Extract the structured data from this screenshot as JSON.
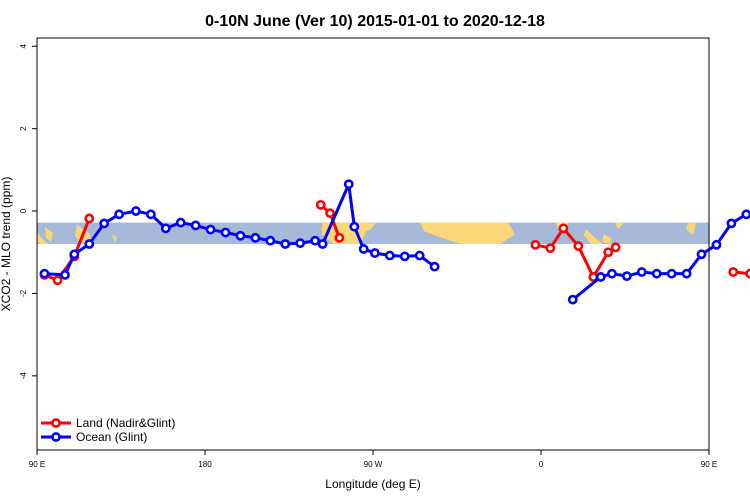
{
  "chart_data": {
    "type": "line",
    "title": "0-10N June (Ver 10)   2015-01-01 to 2020-12-18",
    "xlabel": "Longitude (deg E)",
    "ylabel": "XCO2 - MLO trend (ppm)",
    "xlim": [
      90,
      450
    ],
    "ylim": [
      -5.8,
      4.2
    ],
    "xticks": [
      {
        "value": 90,
        "label": "90 E"
      },
      {
        "value": 180,
        "label": "180"
      },
      {
        "value": 270,
        "label": "90 W"
      },
      {
        "value": 360,
        "label": "0"
      },
      {
        "value": 450,
        "label": "90 E"
      },
      {
        "value": 540,
        "label": "180"
      }
    ],
    "yticks": [
      4,
      2,
      0,
      -2,
      -4
    ],
    "band": {
      "ymin": -0.8,
      "ymax": -0.28,
      "ocean_color": "#a6b9d9",
      "land_color": "#fbd77a"
    },
    "legend_position": "bottom-left",
    "series": [
      {
        "name": "Land (Nadir&Glint)",
        "color": "#ff0000",
        "segments": [
          [
            [
              94,
              -1.55
            ],
            [
              101,
              -1.68
            ],
            [
              110,
              -1.1
            ],
            [
              118,
              -0.18
            ]
          ],
          [
            [
              242,
              0.15
            ],
            [
              247,
              -0.05
            ],
            [
              252,
              -0.65
            ]
          ],
          [
            [
              357,
              -0.82
            ],
            [
              365,
              -0.9
            ],
            [
              372,
              -0.42
            ],
            [
              380,
              -0.85
            ],
            [
              388,
              -1.6
            ],
            [
              396,
              -1.0
            ],
            [
              400,
              -0.88
            ]
          ],
          [
            [
              463,
              -1.48
            ],
            [
              472,
              -1.52
            ],
            [
              477,
              -1.68
            ],
            [
              486,
              -1.08
            ],
            [
              492,
              -0.2
            ]
          ]
        ]
      },
      {
        "name": "Ocean (Glint)",
        "color": "#0000ff",
        "segments": [
          [
            [
              94,
              -1.52
            ],
            [
              105,
              -1.55
            ],
            [
              110,
              -1.05
            ],
            [
              118,
              -0.8
            ],
            [
              126,
              -0.3
            ],
            [
              134,
              -0.08
            ],
            [
              143,
              0.0
            ],
            [
              151,
              -0.08
            ],
            [
              159,
              -0.42
            ],
            [
              167,
              -0.28
            ],
            [
              175,
              -0.35
            ],
            [
              183,
              -0.45
            ],
            [
              191,
              -0.52
            ],
            [
              199,
              -0.6
            ],
            [
              207,
              -0.65
            ],
            [
              215,
              -0.72
            ],
            [
              223,
              -0.8
            ],
            [
              231,
              -0.78
            ],
            [
              239,
              -0.72
            ],
            [
              243,
              -0.8
            ],
            [
              257,
              0.65
            ],
            [
              260,
              -0.38
            ],
            [
              265,
              -0.92
            ],
            [
              271,
              -1.02
            ],
            [
              279,
              -1.08
            ],
            [
              287,
              -1.1
            ],
            [
              295,
              -1.08
            ],
            [
              303,
              -1.35
            ]
          ],
          [
            [
              377,
              -2.15
            ],
            [
              392,
              -1.6
            ],
            [
              398,
              -1.52
            ],
            [
              406,
              -1.58
            ],
            [
              414,
              -1.48
            ],
            [
              422,
              -1.52
            ],
            [
              430,
              -1.52
            ],
            [
              438,
              -1.52
            ],
            [
              446,
              -1.05
            ],
            [
              454,
              -0.82
            ],
            [
              462,
              -0.3
            ],
            [
              470,
              -0.08
            ],
            [
              478,
              0.0
            ],
            [
              486,
              -0.08
            ],
            [
              494,
              -0.42
            ]
          ]
        ]
      }
    ]
  }
}
